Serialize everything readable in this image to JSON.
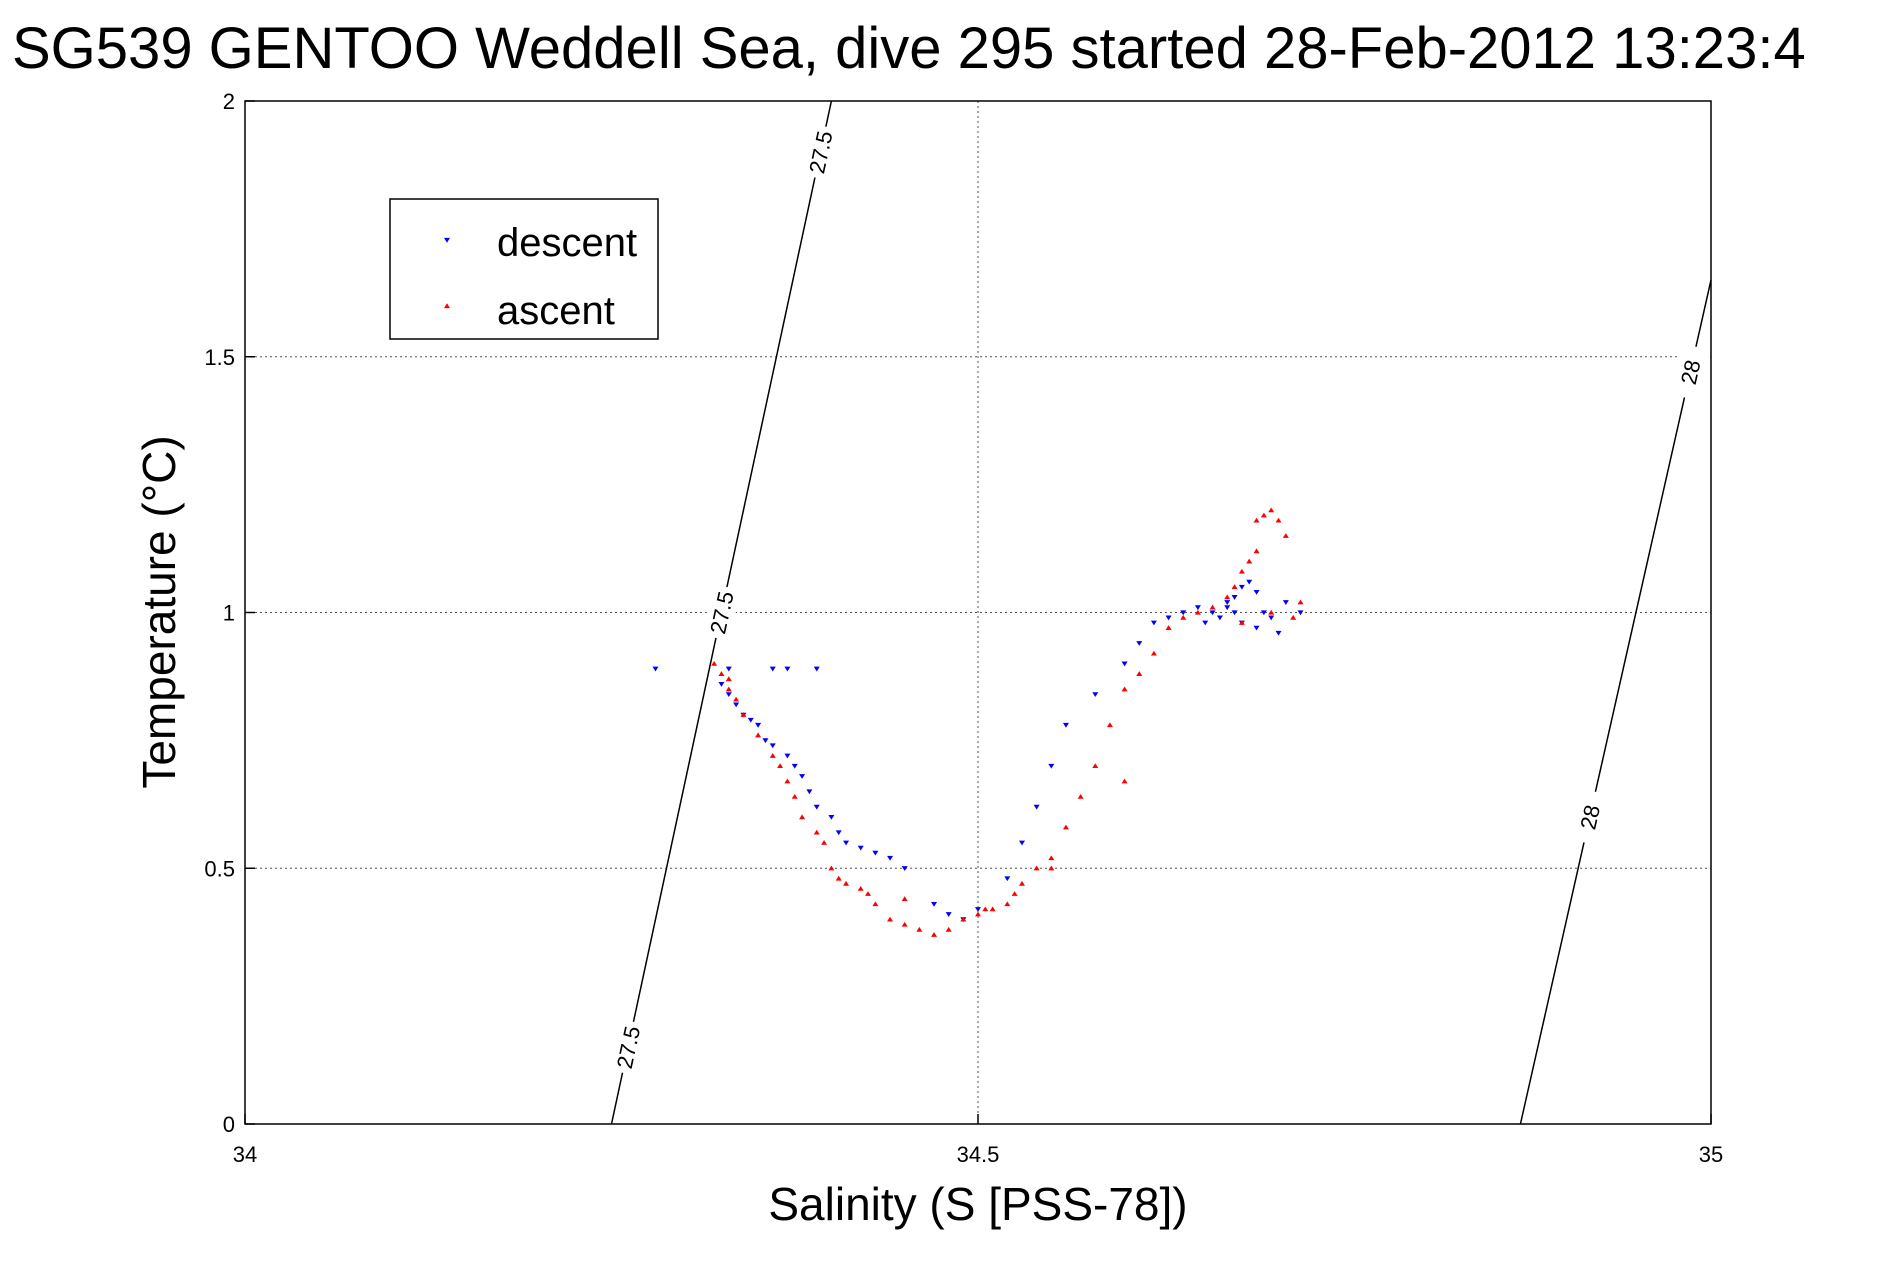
{
  "chart_data": {
    "type": "scatter",
    "title": "SG539 GENTOO Weddell Sea, dive 295 started 28-Feb-2012 13:23:4",
    "xlabel": "Salinity (S [PSS-78])",
    "ylabel": "Temperature (°C)",
    "xlim": [
      34,
      35
    ],
    "ylim": [
      0,
      2
    ],
    "xticks": [
      34,
      34.5,
      35
    ],
    "xtick_labels": [
      "34",
      "34.5",
      "35"
    ],
    "yticks": [
      0,
      0.5,
      1,
      1.5,
      2
    ],
    "ytick_labels": [
      "0",
      "0.5",
      "1",
      "1.5",
      "2"
    ],
    "grid": true,
    "legend_position": "top-left",
    "series": [
      {
        "name": "descent",
        "marker": "triangle-down",
        "color": "#0000ff",
        "x": [
          34.28,
          34.33,
          34.36,
          34.37,
          34.39,
          34.325,
          34.33,
          34.335,
          34.34,
          34.345,
          34.35,
          34.355,
          34.36,
          34.37,
          34.375,
          34.38,
          34.385,
          34.39,
          34.4,
          34.405,
          34.41,
          34.42,
          34.43,
          34.44,
          34.45,
          34.47,
          34.48,
          34.49,
          34.5,
          34.52,
          34.53,
          34.54,
          34.55,
          34.56,
          34.58,
          34.6,
          34.61,
          34.62,
          34.63,
          34.64,
          34.65,
          34.655,
          34.66,
          34.665,
          34.67,
          34.675,
          34.68,
          34.685,
          34.69,
          34.695,
          34.7,
          34.71,
          34.705,
          34.69,
          34.68,
          34.67,
          34.675,
          34.72
        ],
        "y": [
          0.89,
          0.89,
          0.89,
          0.89,
          0.89,
          0.86,
          0.84,
          0.82,
          0.8,
          0.79,
          0.78,
          0.75,
          0.74,
          0.72,
          0.7,
          0.68,
          0.65,
          0.62,
          0.6,
          0.57,
          0.55,
          0.54,
          0.53,
          0.52,
          0.5,
          0.43,
          0.41,
          0.4,
          0.42,
          0.48,
          0.55,
          0.62,
          0.7,
          0.78,
          0.84,
          0.9,
          0.94,
          0.98,
          0.99,
          1.0,
          1.01,
          0.98,
          1.0,
          0.99,
          1.02,
          1.03,
          1.05,
          1.06,
          1.04,
          1.0,
          0.99,
          1.02,
          0.96,
          0.97,
          0.98,
          1.01,
          1.0,
          1.0
        ]
      },
      {
        "name": "ascent",
        "marker": "triangle-up",
        "color": "#ff0000",
        "x": [
          34.32,
          34.325,
          34.33,
          34.33,
          34.335,
          34.34,
          34.35,
          34.36,
          34.365,
          34.37,
          34.375,
          34.38,
          34.39,
          34.395,
          34.4,
          34.405,
          34.41,
          34.42,
          34.425,
          34.43,
          34.44,
          34.45,
          34.46,
          34.47,
          34.48,
          34.49,
          34.5,
          34.505,
          34.51,
          34.52,
          34.525,
          34.53,
          34.54,
          34.55,
          34.56,
          34.57,
          34.58,
          34.59,
          34.6,
          34.61,
          34.62,
          34.63,
          34.64,
          34.65,
          34.66,
          34.67,
          34.675,
          34.68,
          34.685,
          34.69,
          34.69,
          34.695,
          34.7,
          34.705,
          34.71,
          34.72,
          34.715,
          34.7,
          34.68,
          34.6,
          34.55,
          34.45
        ],
        "y": [
          0.9,
          0.88,
          0.87,
          0.85,
          0.83,
          0.8,
          0.76,
          0.72,
          0.7,
          0.67,
          0.64,
          0.6,
          0.57,
          0.55,
          0.5,
          0.48,
          0.47,
          0.46,
          0.45,
          0.43,
          0.4,
          0.39,
          0.38,
          0.37,
          0.38,
          0.4,
          0.41,
          0.42,
          0.42,
          0.43,
          0.45,
          0.47,
          0.5,
          0.52,
          0.58,
          0.64,
          0.7,
          0.78,
          0.85,
          0.88,
          0.92,
          0.97,
          0.99,
          1.0,
          1.01,
          1.03,
          1.05,
          1.08,
          1.1,
          1.12,
          1.18,
          1.19,
          1.2,
          1.18,
          1.15,
          1.02,
          0.99,
          1.0,
          0.98,
          0.67,
          0.5,
          0.44
        ]
      }
    ],
    "density_contours": [
      {
        "label": "27.5",
        "line": [
          [
            34.25,
            0
          ],
          [
            34.4,
            2
          ]
        ],
        "labels_at_y": [
          0.15,
          1.0,
          1.9
        ]
      },
      {
        "label": "28",
        "line": [
          [
            34.87,
            0
          ],
          [
            35.0,
            1.65
          ]
        ],
        "labels_at_y": [
          0.6,
          1.47
        ]
      }
    ]
  }
}
